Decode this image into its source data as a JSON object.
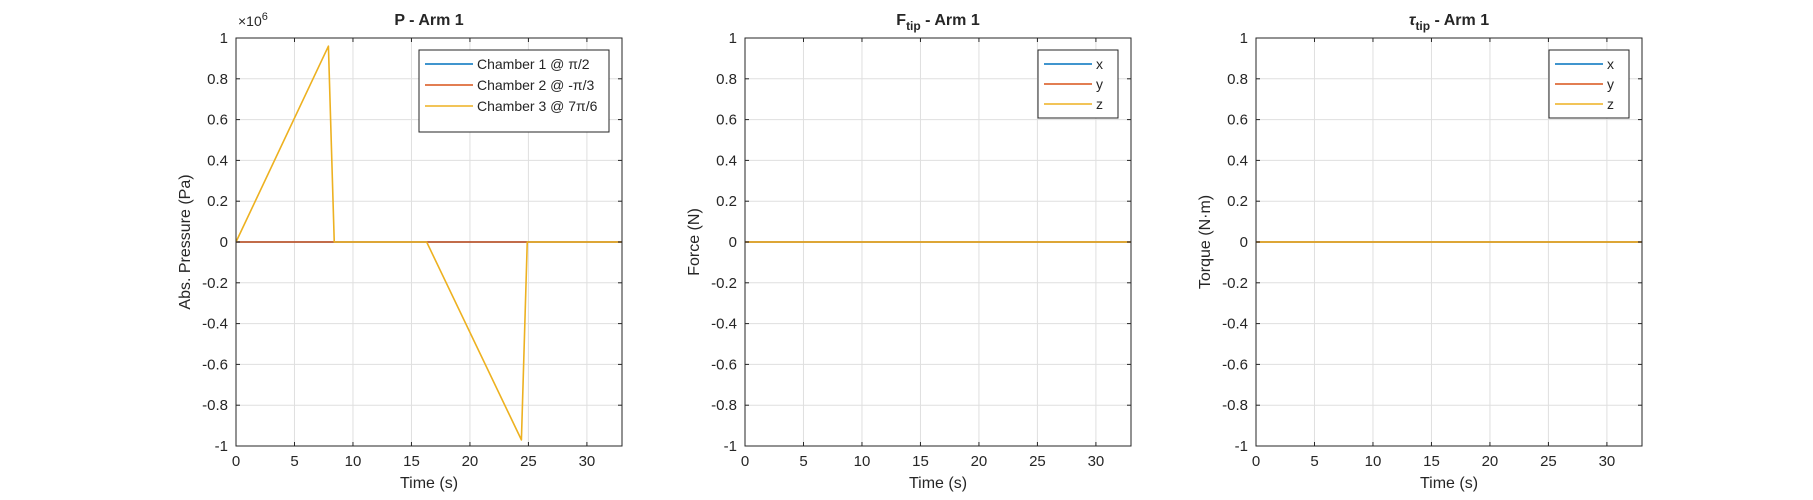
{
  "colors": {
    "series_1": "#0072BD",
    "series_2": "#D95319",
    "series_3": "#EDB120",
    "axis": "#262626",
    "grid": "#DFDFDF",
    "background": "#FFFFFF"
  },
  "chart_data": [
    {
      "type": "line",
      "title": "P - Arm 1",
      "xlabel": "Time (s)",
      "ylabel": "Abs. Pressure (Pa)",
      "exponent_label": "×10",
      "exponent_power": "6",
      "xlim": [
        0,
        33
      ],
      "ylim": [
        -1,
        1
      ],
      "xticks": [
        0,
        5,
        10,
        15,
        20,
        25,
        30
      ],
      "yticks": [
        -1,
        -0.8,
        -0.6,
        -0.4,
        -0.2,
        0,
        0.2,
        0.4,
        0.6,
        0.8,
        1
      ],
      "xtick_labels": [
        "0",
        "5",
        "10",
        "15",
        "20",
        "25",
        "30"
      ],
      "ytick_labels": [
        "-1",
        "-0.8",
        "-0.6",
        "-0.4",
        "-0.2",
        "0",
        "0.2",
        "0.4",
        "0.6",
        "0.8",
        "1"
      ],
      "grid": true,
      "legend_position": "top-right",
      "series": [
        {
          "name": "Chamber 1 @ π/2",
          "color": "#0072BD",
          "x": [
            0,
            33
          ],
          "y": [
            0,
            0
          ]
        },
        {
          "name": "Chamber 2 @ -π/3",
          "color": "#D95319",
          "x": [
            0,
            8.4,
            16.3,
            24.9,
            33
          ],
          "y": [
            0,
            0,
            0,
            0,
            0
          ]
        },
        {
          "name": "Chamber 3 @ 7π/6",
          "color": "#EDB120",
          "x": [
            0,
            7.9,
            8.4,
            16.3,
            24.4,
            24.9,
            33
          ],
          "y": [
            0,
            0.96,
            0,
            0,
            -0.97,
            0,
            0
          ]
        }
      ]
    },
    {
      "type": "line",
      "title": "F",
      "title_subscript": "tip",
      "title_suffix": " - Arm 1",
      "xlabel": "Time (s)",
      "ylabel": "Force (N)",
      "xlim": [
        0,
        33
      ],
      "ylim": [
        -1,
        1
      ],
      "xticks": [
        0,
        5,
        10,
        15,
        20,
        25,
        30
      ],
      "yticks": [
        -1,
        -0.8,
        -0.6,
        -0.4,
        -0.2,
        0,
        0.2,
        0.4,
        0.6,
        0.8,
        1
      ],
      "xtick_labels": [
        "0",
        "5",
        "10",
        "15",
        "20",
        "25",
        "30"
      ],
      "ytick_labels": [
        "-1",
        "-0.8",
        "-0.6",
        "-0.4",
        "-0.2",
        "0",
        "0.2",
        "0.4",
        "0.6",
        "0.8",
        "1"
      ],
      "grid": true,
      "legend_position": "top-right",
      "series": [
        {
          "name": "x",
          "color": "#0072BD",
          "x": [
            0,
            33
          ],
          "y": [
            0,
            0
          ]
        },
        {
          "name": "y",
          "color": "#D95319",
          "x": [
            0,
            33
          ],
          "y": [
            0,
            0
          ]
        },
        {
          "name": "z",
          "color": "#EDB120",
          "x": [
            0,
            33
          ],
          "y": [
            0,
            0
          ]
        }
      ]
    },
    {
      "type": "line",
      "title": "τ",
      "title_subscript": "tip",
      "title_suffix": " - Arm 1",
      "xlabel": "Time (s)",
      "ylabel": "Torque (N·m)",
      "xlim": [
        0,
        33
      ],
      "ylim": [
        -1,
        1
      ],
      "xticks": [
        0,
        5,
        10,
        15,
        20,
        25,
        30
      ],
      "yticks": [
        -1,
        -0.8,
        -0.6,
        -0.4,
        -0.2,
        0,
        0.2,
        0.4,
        0.6,
        0.8,
        1
      ],
      "xtick_labels": [
        "0",
        "5",
        "10",
        "15",
        "20",
        "25",
        "30"
      ],
      "ytick_labels": [
        "-1",
        "-0.8",
        "-0.6",
        "-0.4",
        "-0.2",
        "0",
        "0.2",
        "0.4",
        "0.6",
        "0.8",
        "1"
      ],
      "grid": true,
      "legend_position": "top-right",
      "series": [
        {
          "name": "x",
          "color": "#0072BD",
          "x": [
            0,
            33
          ],
          "y": [
            0,
            0
          ]
        },
        {
          "name": "y",
          "color": "#D95319",
          "x": [
            0,
            33
          ],
          "y": [
            0,
            0
          ]
        },
        {
          "name": "z",
          "color": "#EDB120",
          "x": [
            0,
            33
          ],
          "y": [
            0,
            0
          ]
        }
      ]
    }
  ]
}
